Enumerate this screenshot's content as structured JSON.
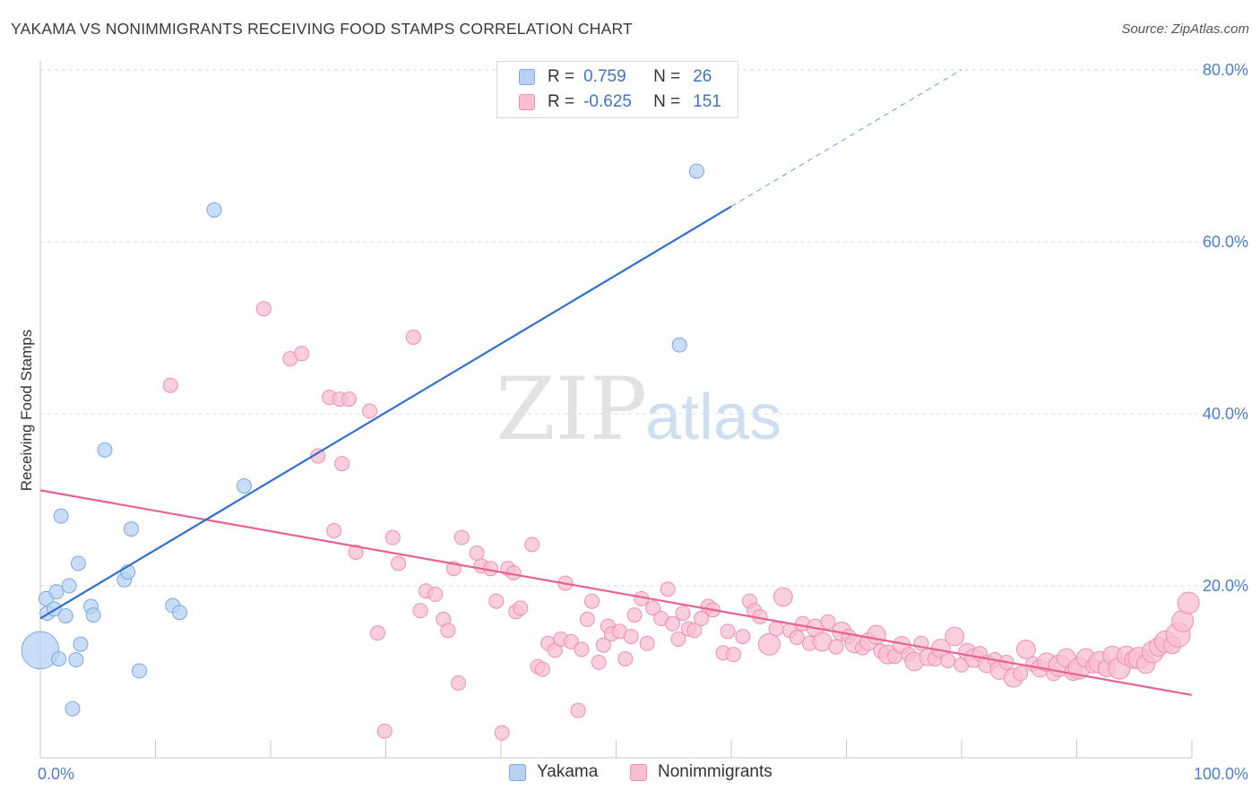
{
  "header": {
    "title": "YAKAMA VS NONIMMIGRANTS RECEIVING FOOD STAMPS CORRELATION CHART",
    "source": "Source: ZipAtlas.com"
  },
  "watermark": {
    "zip": "ZIP",
    "atlas": "atlas"
  },
  "legend": {
    "rows": [
      {
        "r_label": "R =",
        "r_value": " 0.759",
        "n_label": "N =",
        "n_value": "26"
      },
      {
        "r_label": "R =",
        "r_value": "-0.625",
        "n_label": "N =",
        "n_value": "151"
      }
    ]
  },
  "colors": {
    "yakama_fill": "#b7d2f3",
    "yakama_stroke": "#7aa8e2",
    "yakama_line": "#2f6fcf",
    "nonimm_fill": "#f8bfd1",
    "nonimm_stroke": "#ee8fae",
    "nonimm_line": "#e8628c",
    "grid": "#dcdcdc",
    "tick_text": "#4a7fd0"
  },
  "chart_data": {
    "type": "scatter",
    "title": "YAKAMA VS NONIMMIGRANTS RECEIVING FOOD STAMPS CORRELATION CHART",
    "xlabel": "",
    "ylabel": "Receiving Food Stamps",
    "xlim": [
      0,
      100
    ],
    "ylim": [
      0,
      82
    ],
    "x_tick_labels": [
      "0.0%",
      "100.0%"
    ],
    "y_ticks": [
      20,
      40,
      60,
      80
    ],
    "y_tick_labels": [
      "20.0%",
      "40.0%",
      "60.0%",
      "80.0%"
    ],
    "grid": true,
    "legend_placement": "bottom",
    "series": [
      {
        "name": "Yakama",
        "stats": {
          "R": 0.759,
          "N": 26
        },
        "trend": {
          "x": [
            0,
            60
          ],
          "y": [
            16.2,
            64.1
          ],
          "dashed_to": [
            80,
            80
          ]
        },
        "points": [
          [
            0,
            12.5,
            2.6
          ],
          [
            0.5,
            18.5,
            1
          ],
          [
            0.6,
            16.8,
            1
          ],
          [
            1.2,
            17.3,
            1
          ],
          [
            1.4,
            19.3,
            1
          ],
          [
            1.6,
            11.5,
            1
          ],
          [
            1.8,
            28.1,
            1
          ],
          [
            2.2,
            16.5,
            1
          ],
          [
            2.5,
            20,
            1
          ],
          [
            2.8,
            5.7,
            1
          ],
          [
            3.1,
            11.4,
            1
          ],
          [
            3.3,
            22.6,
            1
          ],
          [
            3.5,
            13.2,
            1
          ],
          [
            4.4,
            17.6,
            1
          ],
          [
            4.6,
            16.6,
            1
          ],
          [
            5.6,
            35.8,
            1
          ],
          [
            7.3,
            20.7,
            1
          ],
          [
            7.6,
            21.6,
            1
          ],
          [
            7.9,
            26.6,
            1
          ],
          [
            8.6,
            10.1,
            1
          ],
          [
            11.5,
            17.7,
            1
          ],
          [
            12.1,
            16.9,
            1
          ],
          [
            15.1,
            63.7,
            1
          ],
          [
            17.7,
            31.6,
            1
          ],
          [
            55.5,
            48,
            1
          ],
          [
            57,
            68.2,
            1
          ]
        ]
      },
      {
        "name": "Nonimmigrants",
        "stats": {
          "R": -0.625,
          "N": 151
        },
        "trend": {
          "x": [
            0,
            100
          ],
          "y": [
            31.1,
            7.3
          ]
        },
        "points": [
          [
            11.3,
            43.3,
            1
          ],
          [
            19.4,
            52.2,
            1
          ],
          [
            21.7,
            46.4,
            1
          ],
          [
            22.7,
            47,
            1
          ],
          [
            24.1,
            35.1,
            1
          ],
          [
            25.1,
            41.9,
            1
          ],
          [
            25.5,
            26.4,
            1
          ],
          [
            26,
            41.7,
            1
          ],
          [
            26.8,
            41.7,
            1
          ],
          [
            26.2,
            34.2,
            1
          ],
          [
            27.4,
            23.9,
            1
          ],
          [
            28.6,
            40.3,
            1
          ],
          [
            29.3,
            14.5,
            1
          ],
          [
            29.9,
            3.1,
            1
          ],
          [
            30.6,
            25.6,
            1
          ],
          [
            31.1,
            22.6,
            1
          ],
          [
            32.4,
            48.9,
            1
          ],
          [
            33,
            17.1,
            1
          ],
          [
            33.5,
            19.4,
            1
          ],
          [
            34.3,
            19,
            1
          ],
          [
            35,
            16.1,
            1
          ],
          [
            35.4,
            14.8,
            1
          ],
          [
            35.9,
            22,
            1
          ],
          [
            36.3,
            8.7,
            1
          ],
          [
            36.6,
            25.6,
            1
          ],
          [
            37.9,
            23.8,
            1
          ],
          [
            38.3,
            22.3,
            1
          ],
          [
            39.1,
            22,
            1
          ],
          [
            39.6,
            18.2,
            1
          ],
          [
            40.1,
            2.9,
            1
          ],
          [
            40.6,
            22,
            1
          ],
          [
            41.1,
            21.5,
            1
          ],
          [
            41.3,
            17,
            1
          ],
          [
            41.7,
            17.4,
            1
          ],
          [
            42.7,
            24.8,
            1
          ],
          [
            43.2,
            10.6,
            1
          ],
          [
            43.6,
            10.3,
            1
          ],
          [
            44.1,
            13.3,
            1
          ],
          [
            44.7,
            12.5,
            1
          ],
          [
            45.2,
            13.8,
            1
          ],
          [
            45.6,
            20.3,
            1
          ],
          [
            46.1,
            13.5,
            1
          ],
          [
            46.7,
            5.5,
            1
          ],
          [
            47,
            12.6,
            1
          ],
          [
            47.5,
            16.1,
            1
          ],
          [
            47.9,
            18.2,
            1
          ],
          [
            48.5,
            11.1,
            1
          ],
          [
            48.9,
            13.1,
            1
          ],
          [
            49.3,
            15.3,
            1
          ],
          [
            49.6,
            14.4,
            1
          ],
          [
            50.3,
            14.7,
            1
          ],
          [
            50.8,
            11.5,
            1
          ],
          [
            51.3,
            14.1,
            1
          ],
          [
            51.6,
            16.6,
            1
          ],
          [
            52.2,
            18.5,
            1
          ],
          [
            52.7,
            13.3,
            1
          ],
          [
            53.2,
            17.4,
            1
          ],
          [
            53.9,
            16.2,
            1
          ],
          [
            54.5,
            19.6,
            1
          ],
          [
            54.9,
            15.6,
            1
          ],
          [
            55.4,
            13.8,
            1
          ],
          [
            55.8,
            16.8,
            1
          ],
          [
            56.3,
            15,
            1
          ],
          [
            56.8,
            14.8,
            1
          ],
          [
            57.4,
            16.2,
            1
          ],
          [
            58,
            17.6,
            1
          ],
          [
            58.4,
            17.2,
            1
          ],
          [
            59.3,
            12.2,
            1
          ],
          [
            59.7,
            14.7,
            1
          ],
          [
            60.2,
            12,
            1
          ],
          [
            61,
            14.1,
            1
          ],
          [
            61.6,
            18.2,
            1
          ],
          [
            62,
            17.1,
            1
          ],
          [
            62.5,
            16.4,
            1
          ],
          [
            63.3,
            13.2,
            1.5
          ],
          [
            63.9,
            15,
            1
          ],
          [
            64.5,
            18.7,
            1.3
          ],
          [
            65.1,
            14.8,
            1
          ],
          [
            65.7,
            14,
            1
          ],
          [
            66.2,
            15.6,
            1
          ],
          [
            66.8,
            13.3,
            1
          ],
          [
            67.3,
            15.1,
            1.2
          ],
          [
            67.9,
            13.5,
            1.3
          ],
          [
            68.4,
            15.8,
            1
          ],
          [
            69.1,
            12.9,
            1
          ],
          [
            69.6,
            14.7,
            1.3
          ],
          [
            70.2,
            14.1,
            1
          ],
          [
            70.7,
            13.3,
            1.3
          ],
          [
            71.4,
            12.8,
            1
          ],
          [
            71.9,
            13.5,
            1.2
          ],
          [
            72.6,
            14.3,
            1.3
          ],
          [
            73,
            12.4,
            1
          ],
          [
            73.6,
            12,
            1.3
          ],
          [
            74.2,
            11.8,
            1
          ],
          [
            74.8,
            13.1,
            1.2
          ],
          [
            75.4,
            12,
            1
          ],
          [
            75.9,
            11.2,
            1.3
          ],
          [
            76.5,
            13.3,
            1
          ],
          [
            77.1,
            11.7,
            1.2
          ],
          [
            77.7,
            11.5,
            1
          ],
          [
            78.2,
            12.7,
            1.3
          ],
          [
            78.8,
            11.3,
            1
          ],
          [
            79.4,
            14.1,
            1.3
          ],
          [
            80,
            10.8,
            1
          ],
          [
            80.5,
            12.3,
            1.2
          ],
          [
            81.1,
            11.6,
            1.3
          ],
          [
            81.6,
            12.1,
            1
          ],
          [
            82.2,
            10.9,
            1.2
          ],
          [
            82.9,
            11.4,
            1
          ],
          [
            83.3,
            10.2,
            1.3
          ],
          [
            83.9,
            11.1,
            1
          ],
          [
            84.5,
            9.3,
            1.3
          ],
          [
            85.1,
            9.8,
            1
          ],
          [
            85.6,
            12.6,
            1.3
          ],
          [
            86.2,
            10.9,
            1
          ],
          [
            86.8,
            10.4,
            1.2
          ],
          [
            87.4,
            11.1,
            1.3
          ],
          [
            88,
            9.8,
            1
          ],
          [
            88.5,
            10.7,
            1.5
          ],
          [
            89.1,
            11.6,
            1.3
          ],
          [
            89.7,
            10,
            1.2
          ],
          [
            90.2,
            10.4,
            1.5
          ],
          [
            90.8,
            11.6,
            1.3
          ],
          [
            91.4,
            10.7,
            1
          ],
          [
            92,
            11.1,
            1.5
          ],
          [
            92.6,
            10.4,
            1.2
          ],
          [
            93.1,
            11.9,
            1.3
          ],
          [
            93.7,
            10.4,
            1.5
          ],
          [
            94.3,
            11.9,
            1.3
          ],
          [
            94.9,
            11.4,
            1.2
          ],
          [
            95.4,
            11.6,
            1.5
          ],
          [
            96,
            10.9,
            1.3
          ],
          [
            96.6,
            12.3,
            1.5
          ],
          [
            97.1,
            12.9,
            1.3
          ],
          [
            97.7,
            13.5,
            1.5
          ],
          [
            98.3,
            13.1,
            1.2
          ],
          [
            98.8,
            14.3,
            1.7
          ],
          [
            99.2,
            15.9,
            1.5
          ],
          [
            99.7,
            18,
            1.5
          ]
        ]
      }
    ]
  },
  "bottom_legend": {
    "items": [
      "Yakama",
      "Nonimmigrants"
    ]
  }
}
